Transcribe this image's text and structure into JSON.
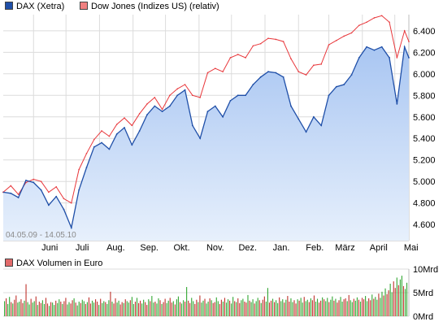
{
  "legend": {
    "dax": "DAX (Xetra)",
    "dow": "Dow Jones (Indizes US) (relativ)",
    "volume": "DAX Volumen in Euro"
  },
  "date_range": "04.05.09 - 14.05.10",
  "colors": {
    "dax_line": "#1f4fa8",
    "dax_fill_top": "#a9c6f2",
    "dax_fill_bottom": "#e7f0fc",
    "dow_line": "#e8373b",
    "vol_up": "#35a835",
    "vol_down": "#c0352f",
    "grid": "#dcdcdc"
  },
  "chart_data": [
    {
      "type": "area",
      "title": "",
      "x_ticks": [
        "Juni",
        "Juli",
        "Aug.",
        "Sep.",
        "Okt.",
        "Nov.",
        "Dez.",
        "Jan.",
        "Feb.",
        "März",
        "April",
        "Mai"
      ],
      "y_ticks": [
        "4.600",
        "4.800",
        "5.000",
        "5.200",
        "5.400",
        "5.600",
        "5.800",
        "6.000",
        "6.200",
        "6.400"
      ],
      "ylim": [
        4450,
        6550
      ],
      "grid": true,
      "series": [
        {
          "name": "DAX (Xetra)",
          "x": [
            "2009-05-04",
            "2009-05-11",
            "2009-05-18",
            "2009-05-25",
            "2009-06-01",
            "2009-06-08",
            "2009-06-15",
            "2009-06-22",
            "2009-06-29",
            "2009-07-06",
            "2009-07-13",
            "2009-07-20",
            "2009-07-27",
            "2009-08-03",
            "2009-08-10",
            "2009-08-17",
            "2009-08-24",
            "2009-08-31",
            "2009-09-07",
            "2009-09-14",
            "2009-09-21",
            "2009-09-28",
            "2009-10-05",
            "2009-10-12",
            "2009-10-19",
            "2009-10-26",
            "2009-11-02",
            "2009-11-09",
            "2009-11-16",
            "2009-11-23",
            "2009-11-30",
            "2009-12-07",
            "2009-12-14",
            "2009-12-21",
            "2009-12-28",
            "2010-01-04",
            "2010-01-11",
            "2010-01-18",
            "2010-01-25",
            "2010-02-01",
            "2010-02-08",
            "2010-02-15",
            "2010-02-22",
            "2010-03-01",
            "2010-03-08",
            "2010-03-15",
            "2010-03-22",
            "2010-03-29",
            "2010-04-05",
            "2010-04-12",
            "2010-04-19",
            "2010-04-26",
            "2010-05-03",
            "2010-05-10",
            "2010-05-14"
          ],
          "values": [
            4900,
            4890,
            4850,
            5010,
            4990,
            4920,
            4780,
            4860,
            4740,
            4570,
            4920,
            5130,
            5320,
            5360,
            5300,
            5440,
            5500,
            5340,
            5470,
            5620,
            5700,
            5650,
            5700,
            5800,
            5850,
            5520,
            5400,
            5650,
            5700,
            5600,
            5750,
            5800,
            5800,
            5900,
            5970,
            6020,
            6010,
            5970,
            5700,
            5580,
            5460,
            5600,
            5520,
            5800,
            5880,
            5900,
            5990,
            6150,
            6250,
            6220,
            6250,
            6150,
            5720,
            6250,
            6150
          ]
        },
        {
          "name": "Dow Jones (Indizes US) (relativ)",
          "x": [
            "2009-05-04",
            "2009-05-11",
            "2009-05-18",
            "2009-05-25",
            "2009-06-01",
            "2009-06-08",
            "2009-06-15",
            "2009-06-22",
            "2009-06-29",
            "2009-07-06",
            "2009-07-13",
            "2009-07-20",
            "2009-07-27",
            "2009-08-03",
            "2009-08-10",
            "2009-08-17",
            "2009-08-24",
            "2009-08-31",
            "2009-09-07",
            "2009-09-14",
            "2009-09-21",
            "2009-09-28",
            "2009-10-05",
            "2009-10-12",
            "2009-10-19",
            "2009-10-26",
            "2009-11-02",
            "2009-11-09",
            "2009-11-16",
            "2009-11-23",
            "2009-11-30",
            "2009-12-07",
            "2009-12-14",
            "2009-12-21",
            "2009-12-28",
            "2010-01-04",
            "2010-01-11",
            "2010-01-18",
            "2010-01-25",
            "2010-02-01",
            "2010-02-08",
            "2010-02-15",
            "2010-02-22",
            "2010-03-01",
            "2010-03-08",
            "2010-03-15",
            "2010-03-22",
            "2010-03-29",
            "2010-04-05",
            "2010-04-12",
            "2010-04-19",
            "2010-04-26",
            "2010-05-03",
            "2010-05-10",
            "2010-05-14"
          ],
          "values": [
            4900,
            4960,
            4880,
            4990,
            5020,
            5000,
            4900,
            4950,
            4840,
            4800,
            5110,
            5260,
            5390,
            5470,
            5420,
            5530,
            5590,
            5520,
            5630,
            5720,
            5780,
            5670,
            5800,
            5860,
            5900,
            5800,
            5780,
            6010,
            6050,
            6020,
            6150,
            6180,
            6150,
            6260,
            6280,
            6330,
            6320,
            6300,
            6140,
            6020,
            5990,
            6080,
            6090,
            6270,
            6310,
            6350,
            6380,
            6450,
            6480,
            6520,
            6540,
            6480,
            6150,
            6400,
            6300
          ]
        }
      ]
    },
    {
      "type": "bar",
      "title": "DAX Volumen in Euro",
      "y_ticks": [
        "0Mrd",
        "5Mrd",
        "10Mrd"
      ],
      "ylim": [
        0,
        10
      ],
      "series": [
        {
          "name": "DAX Volumen in Euro",
          "values": [
            3.2,
            3.8,
            2.6,
            4.1,
            3.0,
            2.7,
            3.5,
            4.4,
            2.9,
            3.1,
            3.6,
            2.8,
            3.3,
            6.8,
            3.0,
            2.5,
            3.7,
            2.9,
            3.2,
            4.2,
            2.4,
            3.1,
            2.8,
            3.4,
            2.6,
            3.9,
            2.7,
            2.2,
            3.0,
            2.9,
            2.4,
            3.3,
            2.8,
            3.6,
            3.1,
            2.6,
            3.2,
            3.9,
            2.5,
            3.0,
            2.7,
            3.4,
            3.8,
            2.9,
            2.3,
            3.1,
            2.8,
            3.5,
            3.2,
            2.6,
            3.0,
            4.0,
            2.7,
            3.3,
            2.9,
            3.6,
            3.1,
            2.4,
            3.7,
            2.8,
            3.2,
            3.0,
            2.6,
            3.4,
            5.2,
            3.1,
            2.7,
            3.8,
            2.9,
            3.3,
            2.5,
            3.0,
            2.8,
            3.6,
            3.2,
            2.9,
            3.4,
            4.1,
            2.6,
            3.1,
            3.9,
            2.8,
            3.3,
            2.7,
            3.5,
            3.0,
            2.4,
            3.6,
            3.2,
            4.3,
            2.9,
            3.1,
            2.7,
            3.8,
            3.4,
            2.6,
            3.0,
            3.7,
            2.8,
            3.3,
            3.9,
            2.9,
            3.2,
            2.5,
            3.6,
            4.2,
            3.0,
            2.7,
            3.4,
            3.1,
            6.2,
            3.3,
            2.8,
            3.9,
            3.2,
            2.6,
            3.5,
            3.0,
            4.4,
            2.9,
            3.3,
            3.7,
            2.7,
            3.1,
            3.8,
            3.4,
            2.8,
            3.0,
            4.0,
            3.2,
            2.6,
            3.5,
            3.1,
            3.9,
            2.9,
            3.6,
            3.3,
            2.7,
            4.1,
            3.2,
            3.0,
            3.8,
            2.8,
            3.4,
            3.7,
            3.1,
            2.9,
            4.5,
            3.3,
            3.0,
            3.6,
            2.7,
            3.2,
            3.9,
            3.4,
            2.8,
            3.5,
            4.2,
            3.1,
            6.0,
            2.9,
            3.3,
            3.7,
            3.0,
            3.4,
            2.8,
            4.0,
            3.2,
            3.6,
            2.9,
            3.5,
            4.3,
            3.1,
            3.8,
            3.0,
            3.4,
            2.7,
            3.6,
            3.3,
            3.9,
            2.9,
            4.1,
            3.2,
            3.5,
            3.0,
            3.8,
            3.4,
            4.4,
            3.1,
            3.7,
            2.9,
            3.3,
            4.0,
            3.6,
            3.2,
            3.9,
            3.0,
            3.5,
            4.2,
            3.3,
            3.7,
            2.9,
            3.4,
            4.1,
            3.1,
            3.6,
            3.8,
            3.2,
            4.5,
            3.4,
            3.0,
            3.7,
            3.3,
            4.0,
            3.5,
            3.1,
            3.9,
            3.6,
            4.3,
            3.2,
            3.8,
            3.4,
            4.6,
            3.7,
            4.1,
            3.5,
            4.8,
            3.9,
            5.2,
            4.4,
            5.9,
            4.7,
            5.5,
            6.9,
            5.1,
            7.4,
            6.0,
            8.2,
            6.6,
            7.8,
            8.6,
            6.4,
            5.8,
            7.1
          ]
        }
      ]
    }
  ]
}
